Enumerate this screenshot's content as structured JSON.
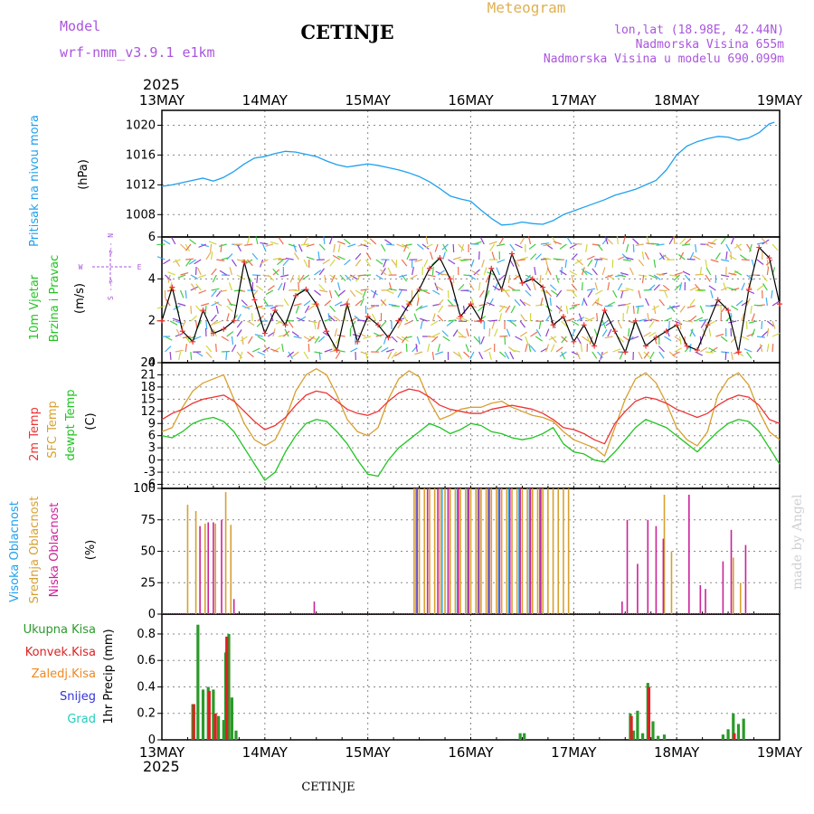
{
  "header": {
    "model_label": "Model",
    "model_name": "wrf-nmm_v3.9.1 e1km",
    "station": "CETINJE",
    "meteogram_label": "Meteogram",
    "lonlat": "lon,lat (18.98E, 42.44N)",
    "elevation": "Nadmorska Visina 655m",
    "model_elevation": "Nadmorska Visina u modelu 690.099m",
    "year": "2025",
    "footer_station": "CETINJE",
    "credit": "made by Angel"
  },
  "colors": {
    "pressure": "#1ea0ee",
    "wind_label": "#22c422",
    "wind_speed": "#000000",
    "t2m": "#ee3333",
    "tsfc": "#d8a030",
    "tdew": "#22c422",
    "cloud_high": "#1ea0ee",
    "cloud_mid": "#d8a030",
    "cloud_low": "#cc2299",
    "precip_total": "#2a9a2a",
    "precip_conv": "#dd2222",
    "precip_frozen": "#ee8822",
    "precip_snow": "#3333dd",
    "precip_graupel": "#22ccbb",
    "model_text": "#aa55dd",
    "meteogram_text": "#e0b050",
    "grid": "#888888",
    "credit": "#cfcfcf"
  },
  "chart_data": [
    {
      "type": "line",
      "panel": "pressure",
      "ylabel_a": "Pritisak na nivou mora",
      "ylabel_b": "(hPa)",
      "ylim": [
        1005,
        1022
      ],
      "yticks": [
        1008,
        1012,
        1016,
        1020
      ],
      "x_days": [
        "13MAY",
        "14MAY",
        "15MAY",
        "16MAY",
        "17MAY",
        "18MAY",
        "19MAY"
      ],
      "series": [
        {
          "x": [
            0,
            0.1,
            0.2,
            0.3,
            0.4,
            0.5,
            0.6,
            0.7,
            0.8,
            0.9,
            1.0,
            1.1,
            1.2,
            1.3,
            1.4,
            1.5,
            1.6,
            1.7,
            1.8,
            1.9,
            2.0,
            2.1,
            2.2,
            2.3,
            2.4,
            2.5,
            2.6,
            2.7,
            2.8,
            2.9,
            3.0,
            3.1,
            3.2,
            3.3,
            3.4,
            3.5,
            3.6,
            3.7,
            3.8,
            3.9,
            4.0,
            4.1,
            4.2,
            4.3,
            4.4,
            4.5,
            4.6,
            4.7,
            4.8,
            4.9,
            5.0,
            5.1,
            5.2,
            5.3,
            5.4,
            5.5,
            5.6,
            5.7,
            5.8,
            5.9,
            5.95
          ],
          "values": [
            1011.8,
            1012.0,
            1012.3,
            1012.6,
            1012.9,
            1012.5,
            1013.0,
            1013.8,
            1014.8,
            1015.6,
            1015.8,
            1016.2,
            1016.5,
            1016.4,
            1016.1,
            1015.8,
            1015.2,
            1014.7,
            1014.4,
            1014.6,
            1014.8,
            1014.6,
            1014.3,
            1014.0,
            1013.6,
            1013.1,
            1012.4,
            1011.5,
            1010.5,
            1010.1,
            1009.8,
            1008.6,
            1007.5,
            1006.6,
            1006.7,
            1007.0,
            1006.8,
            1006.7,
            1007.2,
            1008.0,
            1008.5,
            1009.0,
            1009.5,
            1010.0,
            1010.6,
            1011.0,
            1011.4,
            1012.0,
            1012.6,
            1014.0,
            1016.0,
            1017.2,
            1017.8,
            1018.2,
            1018.5,
            1018.4,
            1018.0,
            1018.3,
            1019.0,
            1020.2,
            1020.4
          ]
        }
      ]
    },
    {
      "type": "line",
      "panel": "wind",
      "ylabel_a": "10m Vjetar",
      "ylabel_b": "Brzina i Pravac",
      "ylabel_c": "(m/s)",
      "compass": [
        "N",
        "E",
        "S",
        "W"
      ],
      "ylim": [
        0,
        6
      ],
      "yticks": [
        0,
        2,
        4,
        6
      ],
      "series": [
        {
          "x": [
            0,
            0.1,
            0.2,
            0.3,
            0.4,
            0.5,
            0.6,
            0.7,
            0.8,
            0.9,
            1.0,
            1.1,
            1.2,
            1.3,
            1.4,
            1.5,
            1.6,
            1.7,
            1.8,
            1.9,
            2.0,
            2.1,
            2.2,
            2.3,
            2.4,
            2.5,
            2.6,
            2.7,
            2.8,
            2.9,
            3.0,
            3.1,
            3.2,
            3.3,
            3.4,
            3.5,
            3.6,
            3.7,
            3.8,
            3.9,
            4.0,
            4.1,
            4.2,
            4.3,
            4.4,
            4.5,
            4.6,
            4.7,
            4.8,
            4.9,
            5.0,
            5.1,
            5.2,
            5.3,
            5.4,
            5.5,
            5.6,
            5.7,
            5.8,
            5.9,
            6.0
          ],
          "values": [
            2.0,
            3.6,
            1.5,
            1.0,
            2.5,
            1.4,
            1.6,
            2.0,
            4.8,
            3.0,
            1.4,
            2.5,
            1.8,
            3.2,
            3.5,
            2.8,
            1.5,
            0.6,
            2.8,
            1.0,
            2.2,
            1.8,
            1.2,
            2.0,
            2.8,
            3.5,
            4.5,
            5.0,
            4.0,
            2.2,
            2.8,
            2.0,
            4.5,
            3.5,
            5.2,
            3.8,
            4.0,
            3.6,
            1.8,
            2.2,
            1.0,
            1.8,
            0.8,
            2.5,
            1.5,
            0.5,
            2.0,
            0.8,
            1.2,
            1.5,
            1.8,
            0.8,
            0.6,
            1.8,
            3.0,
            2.5,
            0.5,
            3.5,
            5.5,
            5.0,
            2.8
          ]
        }
      ]
    },
    {
      "type": "line",
      "panel": "temperature",
      "ylabel_a": "2m Temp",
      "ylabel_b": "SFC Temp",
      "ylabel_c": "dewpt Temp",
      "ylabel_d": "(C)",
      "ylim": [
        -7,
        24
      ],
      "yticks": [
        -6,
        -3,
        0,
        3,
        6,
        9,
        12,
        15,
        18,
        21,
        24
      ],
      "series": [
        {
          "name": "2m Temp",
          "x": [
            0,
            0.1,
            0.2,
            0.3,
            0.4,
            0.5,
            0.6,
            0.7,
            0.8,
            0.9,
            1.0,
            1.1,
            1.2,
            1.3,
            1.4,
            1.5,
            1.6,
            1.7,
            1.8,
            1.9,
            2.0,
            2.1,
            2.2,
            2.3,
            2.4,
            2.5,
            2.6,
            2.7,
            2.8,
            2.9,
            3.0,
            3.1,
            3.2,
            3.3,
            3.4,
            3.5,
            3.6,
            3.7,
            3.8,
            3.9,
            4.0,
            4.1,
            4.2,
            4.3,
            4.4,
            4.5,
            4.6,
            4.7,
            4.8,
            4.9,
            5.0,
            5.1,
            5.2,
            5.3,
            5.4,
            5.5,
            5.6,
            5.7,
            5.8,
            5.9,
            6.0
          ],
          "values": [
            10.0,
            11.5,
            12.5,
            14.0,
            15.0,
            15.5,
            16.0,
            14.5,
            12.0,
            9.5,
            7.5,
            8.5,
            10.5,
            13.5,
            16.0,
            17.0,
            16.5,
            14.5,
            12.5,
            11.5,
            11.0,
            12.0,
            14.5,
            16.5,
            17.5,
            17.0,
            15.5,
            13.5,
            12.5,
            12.0,
            11.5,
            11.5,
            12.5,
            13.0,
            13.5,
            13.0,
            12.5,
            11.5,
            10.0,
            8.0,
            7.5,
            6.5,
            5.0,
            4.0,
            9.0,
            12.0,
            14.5,
            15.5,
            15.0,
            14.0,
            12.5,
            11.5,
            10.5,
            11.5,
            13.5,
            15.0,
            16.0,
            15.5,
            13.5,
            10.0,
            9.0
          ]
        },
        {
          "name": "SFC Temp",
          "x": [
            0,
            0.1,
            0.2,
            0.3,
            0.4,
            0.5,
            0.6,
            0.7,
            0.8,
            0.9,
            1.0,
            1.1,
            1.2,
            1.3,
            1.4,
            1.5,
            1.6,
            1.7,
            1.8,
            1.9,
            2.0,
            2.1,
            2.2,
            2.3,
            2.4,
            2.5,
            2.6,
            2.7,
            2.8,
            2.9,
            3.0,
            3.1,
            3.2,
            3.3,
            3.4,
            3.5,
            3.6,
            3.7,
            3.8,
            3.9,
            4.0,
            4.1,
            4.2,
            4.3,
            4.4,
            4.5,
            4.6,
            4.7,
            4.8,
            4.9,
            5.0,
            5.1,
            5.2,
            5.3,
            5.4,
            5.5,
            5.6,
            5.7,
            5.8,
            5.9,
            6.0
          ],
          "values": [
            7.0,
            8.0,
            13.0,
            17.0,
            19.0,
            20.0,
            21.0,
            15.0,
            9.0,
            5.0,
            3.5,
            5.0,
            10.0,
            17.0,
            21.0,
            22.5,
            21.0,
            16.0,
            10.0,
            7.0,
            6.0,
            8.0,
            15.0,
            20.0,
            22.0,
            20.5,
            14.5,
            10.0,
            11.0,
            12.5,
            13.0,
            13.0,
            14.0,
            14.5,
            13.0,
            12.0,
            11.0,
            10.5,
            9.5,
            7.0,
            5.0,
            4.0,
            3.0,
            1.0,
            8.0,
            15.0,
            20.0,
            21.5,
            19.0,
            14.0,
            8.0,
            5.0,
            3.5,
            7.0,
            16.0,
            20.0,
            21.5,
            18.5,
            12.0,
            7.0,
            5.0
          ]
        },
        {
          "name": "dewpt Temp",
          "x": [
            0,
            0.1,
            0.2,
            0.3,
            0.4,
            0.5,
            0.6,
            0.7,
            0.8,
            0.9,
            1.0,
            1.1,
            1.2,
            1.3,
            1.4,
            1.5,
            1.6,
            1.7,
            1.8,
            1.9,
            2.0,
            2.1,
            2.2,
            2.3,
            2.4,
            2.5,
            2.6,
            2.7,
            2.8,
            2.9,
            3.0,
            3.1,
            3.2,
            3.3,
            3.4,
            3.5,
            3.6,
            3.7,
            3.8,
            3.9,
            4.0,
            4.1,
            4.2,
            4.3,
            4.4,
            4.5,
            4.6,
            4.7,
            4.8,
            4.9,
            5.0,
            5.1,
            5.2,
            5.3,
            5.4,
            5.5,
            5.6,
            5.7,
            5.8,
            5.9,
            6.0
          ],
          "values": [
            6.0,
            5.5,
            7.0,
            9.0,
            10.0,
            10.5,
            9.5,
            7.0,
            3.0,
            -1.0,
            -5.0,
            -3.0,
            2.0,
            6.0,
            9.0,
            10.0,
            9.5,
            7.0,
            4.0,
            0.0,
            -3.5,
            -4.0,
            0.0,
            3.0,
            5.0,
            7.0,
            9.0,
            8.0,
            6.5,
            7.5,
            9.0,
            8.5,
            7.0,
            6.5,
            5.5,
            5.0,
            5.5,
            6.5,
            8.0,
            4.0,
            2.0,
            1.5,
            0.0,
            -0.5,
            2.0,
            5.0,
            8.0,
            10.0,
            9.0,
            8.0,
            6.0,
            4.0,
            2.0,
            4.5,
            7.0,
            9.0,
            10.0,
            9.5,
            7.0,
            3.0,
            -1.0
          ]
        }
      ]
    },
    {
      "type": "bar",
      "panel": "cloud",
      "ylabel_a": "Visoka Oblacnost",
      "ylabel_b": "Srednja Oblacnost",
      "ylabel_c": "Niska Oblacnost",
      "ylabel_d": "(%)",
      "ylim": [
        0,
        100
      ],
      "yticks": [
        0,
        25,
        50,
        75,
        100
      ],
      "series": [
        {
          "name": "Srednja Oblacnost",
          "x": [
            0.25,
            0.33,
            0.42,
            0.52,
            0.62,
            0.67,
            2.45,
            2.5,
            2.55,
            2.6,
            2.65,
            2.7,
            2.75,
            2.8,
            2.85,
            2.9,
            2.95,
            3.0,
            3.05,
            3.1,
            3.15,
            3.2,
            3.25,
            3.3,
            3.35,
            3.4,
            3.45,
            3.5,
            3.55,
            3.6,
            3.65,
            3.7,
            3.75,
            3.8,
            3.85,
            3.9,
            3.95,
            4.88,
            4.95,
            5.55,
            5.62
          ],
          "values": [
            87,
            82,
            72,
            72,
            97,
            71,
            100,
            100,
            100,
            100,
            100,
            100,
            100,
            100,
            100,
            100,
            100,
            100,
            100,
            100,
            100,
            100,
            100,
            100,
            100,
            100,
            100,
            100,
            100,
            100,
            100,
            100,
            100,
            100,
            100,
            100,
            100,
            95,
            50,
            45,
            25
          ]
        },
        {
          "name": "Visoka Oblacnost",
          "x": [
            2.47,
            2.72,
            2.78,
            2.87,
            2.97,
            3.07,
            3.17,
            3.27,
            3.37,
            3.47,
            3.57,
            3.67
          ],
          "values": [
            100,
            100,
            100,
            100,
            100,
            100,
            100,
            100,
            100,
            100,
            100,
            100
          ]
        },
        {
          "name": "Niska Oblacnost",
          "x": [
            0.37,
            0.45,
            0.5,
            0.58,
            0.7,
            1.48,
            2.48,
            2.58,
            2.68,
            2.78,
            2.88,
            2.98,
            3.08,
            3.18,
            3.28,
            3.38,
            3.48,
            3.58,
            3.68,
            4.47,
            4.52,
            4.62,
            4.72,
            4.8,
            4.87,
            5.12,
            5.23,
            5.28,
            5.45,
            5.53,
            5.67
          ],
          "values": [
            70,
            73,
            73,
            75,
            12,
            10,
            100,
            100,
            100,
            100,
            100,
            100,
            100,
            100,
            100,
            100,
            100,
            100,
            100,
            10,
            75,
            40,
            75,
            70,
            60,
            95,
            23,
            20,
            42,
            67,
            55
          ]
        }
      ]
    },
    {
      "type": "bar",
      "panel": "precip",
      "ylabel_a": "1hr Precip (mm)",
      "legend": [
        "Ukupna Kisa",
        "Konvek.Kisa",
        "Zaledj.Kisa",
        "Snijeg",
        "Grad"
      ],
      "ylim": [
        0,
        0.95
      ],
      "yticks": [
        0,
        0.2,
        0.4,
        0.6,
        0.8
      ],
      "series": [
        {
          "name": "Ukupna Kisa",
          "x": [
            0.3,
            0.35,
            0.4,
            0.45,
            0.5,
            0.55,
            0.6,
            0.62,
            0.65,
            0.68,
            0.72,
            3.48,
            3.52,
            4.55,
            4.58,
            4.62,
            4.67,
            4.72,
            4.77,
            4.82,
            4.88,
            5.45,
            5.5,
            5.55,
            5.6,
            5.65
          ],
          "values": [
            0.27,
            0.87,
            0.38,
            0.4,
            0.38,
            0.18,
            0.15,
            0.66,
            0.8,
            0.32,
            0.07,
            0.05,
            0.05,
            0.2,
            0.07,
            0.22,
            0.05,
            0.43,
            0.14,
            0.03,
            0.04,
            0.04,
            0.08,
            0.2,
            0.12,
            0.16
          ]
        },
        {
          "name": "Konvek.Kisa",
          "x": [
            0.31,
            0.46,
            0.52,
            0.63,
            4.56,
            4.73,
            5.56
          ],
          "values": [
            0.27,
            0.37,
            0.2,
            0.78,
            0.18,
            0.4,
            0.05
          ]
        }
      ]
    }
  ]
}
